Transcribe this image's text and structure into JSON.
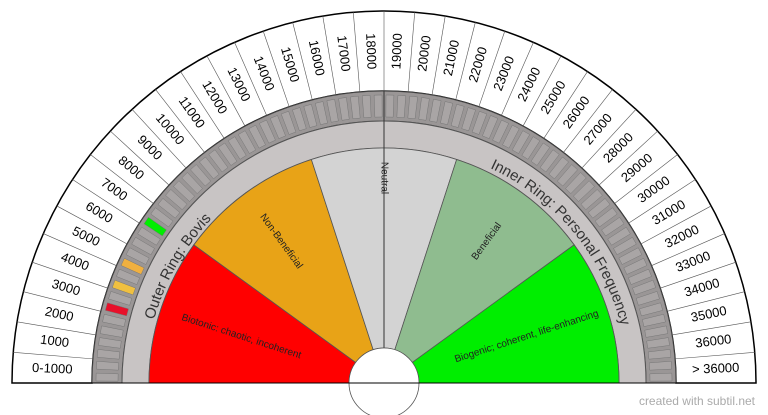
{
  "scale_labels": [
    "0-1000",
    "1000",
    "2000",
    "3000",
    "4000",
    "5000",
    "6000",
    "7000",
    "8000",
    "9000",
    "10000",
    "11000",
    "12000",
    "13000",
    "14000",
    "15000",
    "16000",
    "17000",
    "18000",
    "19000",
    "20000",
    "21000",
    "22000",
    "23000",
    "24000",
    "25000",
    "26000",
    "27000",
    "28000",
    "29000",
    "30000",
    "31000",
    "32000",
    "33000",
    "34000",
    "35000",
    "36000",
    "> 36000"
  ],
  "sectors": [
    {
      "label": "Biotonic: chaotic, incoherent",
      "color": "#ff0000"
    },
    {
      "label": "Non-Beneficial",
      "color": "#e8a317"
    },
    {
      "label": "Neutral",
      "color": "#d3d3d3"
    },
    {
      "label": "Beneficial",
      "color": "#8fbc8f"
    },
    {
      "label": "Biogenic; coherent, life-enhancing",
      "color": "#00ee00"
    }
  ],
  "ring_labels": {
    "outer": "Outer Ring: Bovis",
    "inner": "Inner Ring: Personal Frequency"
  },
  "footer": "created with subtil.net"
}
